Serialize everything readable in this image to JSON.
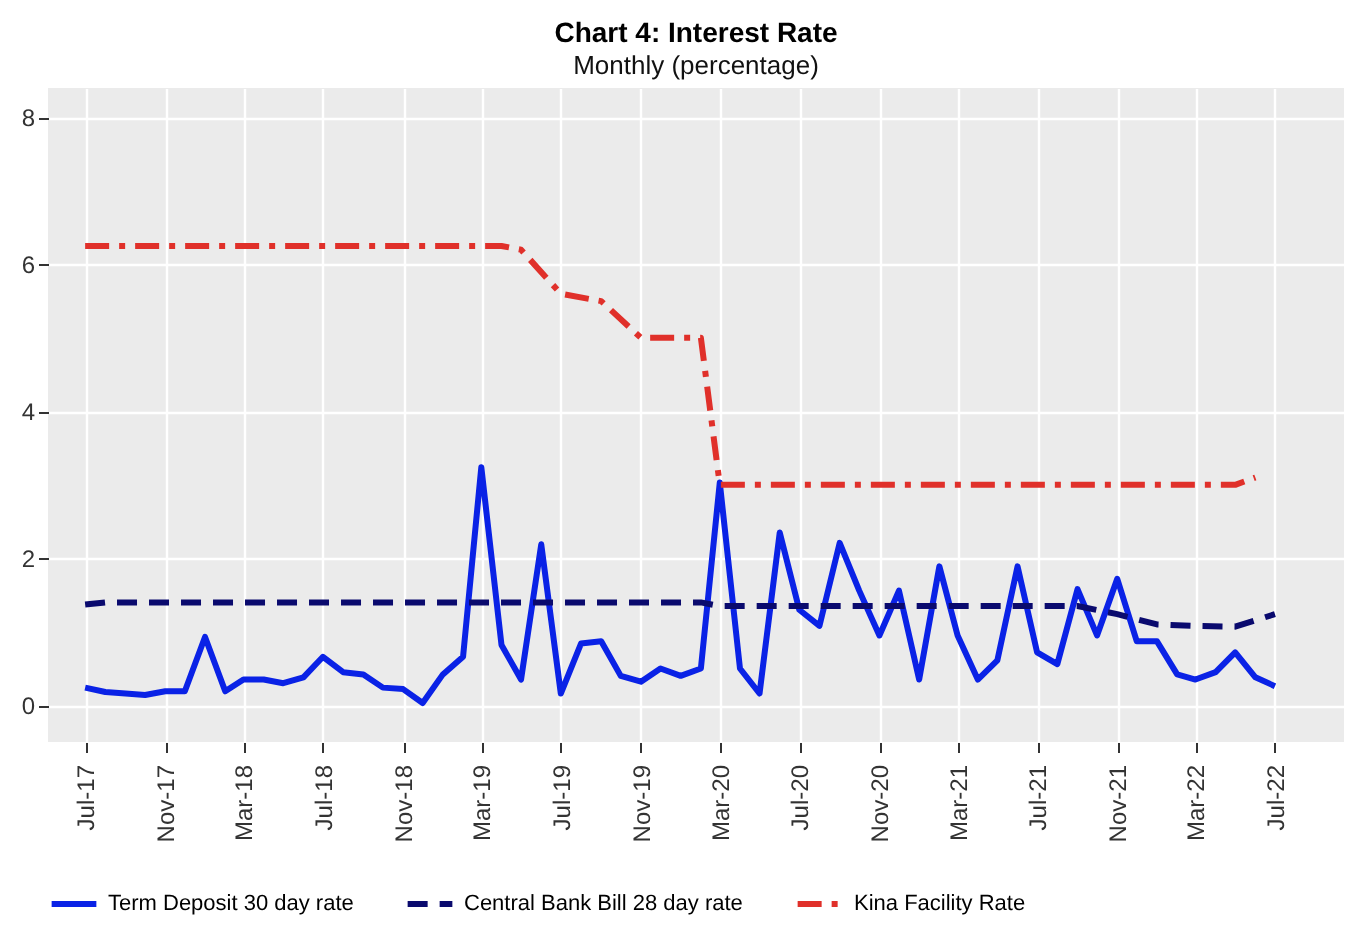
{
  "chart_data": {
    "type": "line",
    "title": "Chart 4: Interest Rate",
    "subtitle": "Monthly (percentage)",
    "xlim": [
      "2017-05-05",
      "2022-10-15"
    ],
    "ylim": [
      -0.5,
      8.4
    ],
    "yticks": [
      0,
      2,
      4,
      6,
      8
    ],
    "xticks": [
      {
        "value": "2017-07",
        "label": "Jul-17"
      },
      {
        "value": "2017-11",
        "label": "Nov-17"
      },
      {
        "value": "2018-03",
        "label": "Mar-18"
      },
      {
        "value": "2018-07",
        "label": "Jul-18"
      },
      {
        "value": "2018-11",
        "label": "Nov-18"
      },
      {
        "value": "2019-03",
        "label": "Mar-19"
      },
      {
        "value": "2019-07",
        "label": "Jul-19"
      },
      {
        "value": "2019-11",
        "label": "Nov-19"
      },
      {
        "value": "2020-03",
        "label": "Mar-20"
      },
      {
        "value": "2020-07",
        "label": "Jul-20"
      },
      {
        "value": "2020-11",
        "label": "Nov-20"
      },
      {
        "value": "2021-03",
        "label": "Mar-21"
      },
      {
        "value": "2021-07",
        "label": "Jul-21"
      },
      {
        "value": "2021-11",
        "label": "Nov-21"
      },
      {
        "value": "2022-03",
        "label": "Mar-22"
      },
      {
        "value": "2022-07",
        "label": "Jul-22"
      }
    ],
    "grid": true,
    "legend": "bottom",
    "series": [
      {
        "name": "Term Deposit 30 day rate",
        "color": "#0a22e6",
        "line_style": "solid",
        "x": [
          "2017-07",
          "2017-08",
          "2017-09",
          "2017-10",
          "2017-11",
          "2017-12",
          "2018-01",
          "2018-02",
          "2018-03",
          "2018-04",
          "2018-05",
          "2018-06",
          "2018-07",
          "2018-08",
          "2018-09",
          "2018-10",
          "2018-11",
          "2018-12",
          "2019-01",
          "2019-02",
          "2019-03",
          "2019-04",
          "2019-05",
          "2019-06",
          "2019-07",
          "2019-08",
          "2019-09",
          "2019-10",
          "2019-11",
          "2019-12",
          "2020-01",
          "2020-02",
          "2020-03",
          "2020-04",
          "2020-05",
          "2020-06",
          "2020-07",
          "2020-08",
          "2020-09",
          "2020-10",
          "2020-11",
          "2020-12",
          "2021-01",
          "2021-02",
          "2021-03",
          "2021-04",
          "2021-05",
          "2021-06",
          "2021-07",
          "2021-08",
          "2021-09",
          "2021-10",
          "2021-11",
          "2021-12",
          "2022-01",
          "2022-02",
          "2022-03",
          "2022-04",
          "2022-05",
          "2022-06",
          "2022-07"
        ],
        "values": [
          0.24,
          0.18,
          0.16,
          0.14,
          0.19,
          0.19,
          0.93,
          0.19,
          0.35,
          0.35,
          0.3,
          0.38,
          0.66,
          0.45,
          0.42,
          0.24,
          0.22,
          0.03,
          0.42,
          0.66,
          3.24,
          0.82,
          0.35,
          2.19,
          0.16,
          0.84,
          0.87,
          0.4,
          0.32,
          0.5,
          0.4,
          0.5,
          3.03,
          0.5,
          0.16,
          2.35,
          1.3,
          1.08,
          2.21,
          1.56,
          0.95,
          1.56,
          0.35,
          1.89,
          0.95,
          0.35,
          0.61,
          1.89,
          0.72,
          0.56,
          1.58,
          0.95,
          1.72,
          0.87,
          0.87,
          0.42,
          0.35,
          0.45,
          0.72,
          0.38,
          0.26
        ]
      },
      {
        "name": "Central Bank Bill 28 day rate",
        "color": "#0a0a6e",
        "line_style": "dashed",
        "x": [
          "2017-07",
          "2017-08",
          "2020-02",
          "2020-03",
          "2021-09",
          "2021-11",
          "2022-01",
          "2022-03",
          "2022-05",
          "2022-07"
        ],
        "values": [
          1.37,
          1.4,
          1.4,
          1.35,
          1.35,
          1.24,
          1.1,
          1.08,
          1.07,
          1.24
        ]
      },
      {
        "name": "Kina Facility Rate",
        "color": "#e0302a",
        "line_style": "dashdot",
        "x": [
          "2017-07",
          "2019-04",
          "2019-05",
          "2019-07",
          "2019-09",
          "2019-11",
          "2020-02",
          "2020-03",
          "2022-05",
          "2022-06"
        ],
        "values": [
          6.25,
          6.25,
          6.2,
          5.6,
          5.5,
          5.0,
          5.0,
          3.0,
          3.0,
          3.1
        ]
      }
    ]
  }
}
